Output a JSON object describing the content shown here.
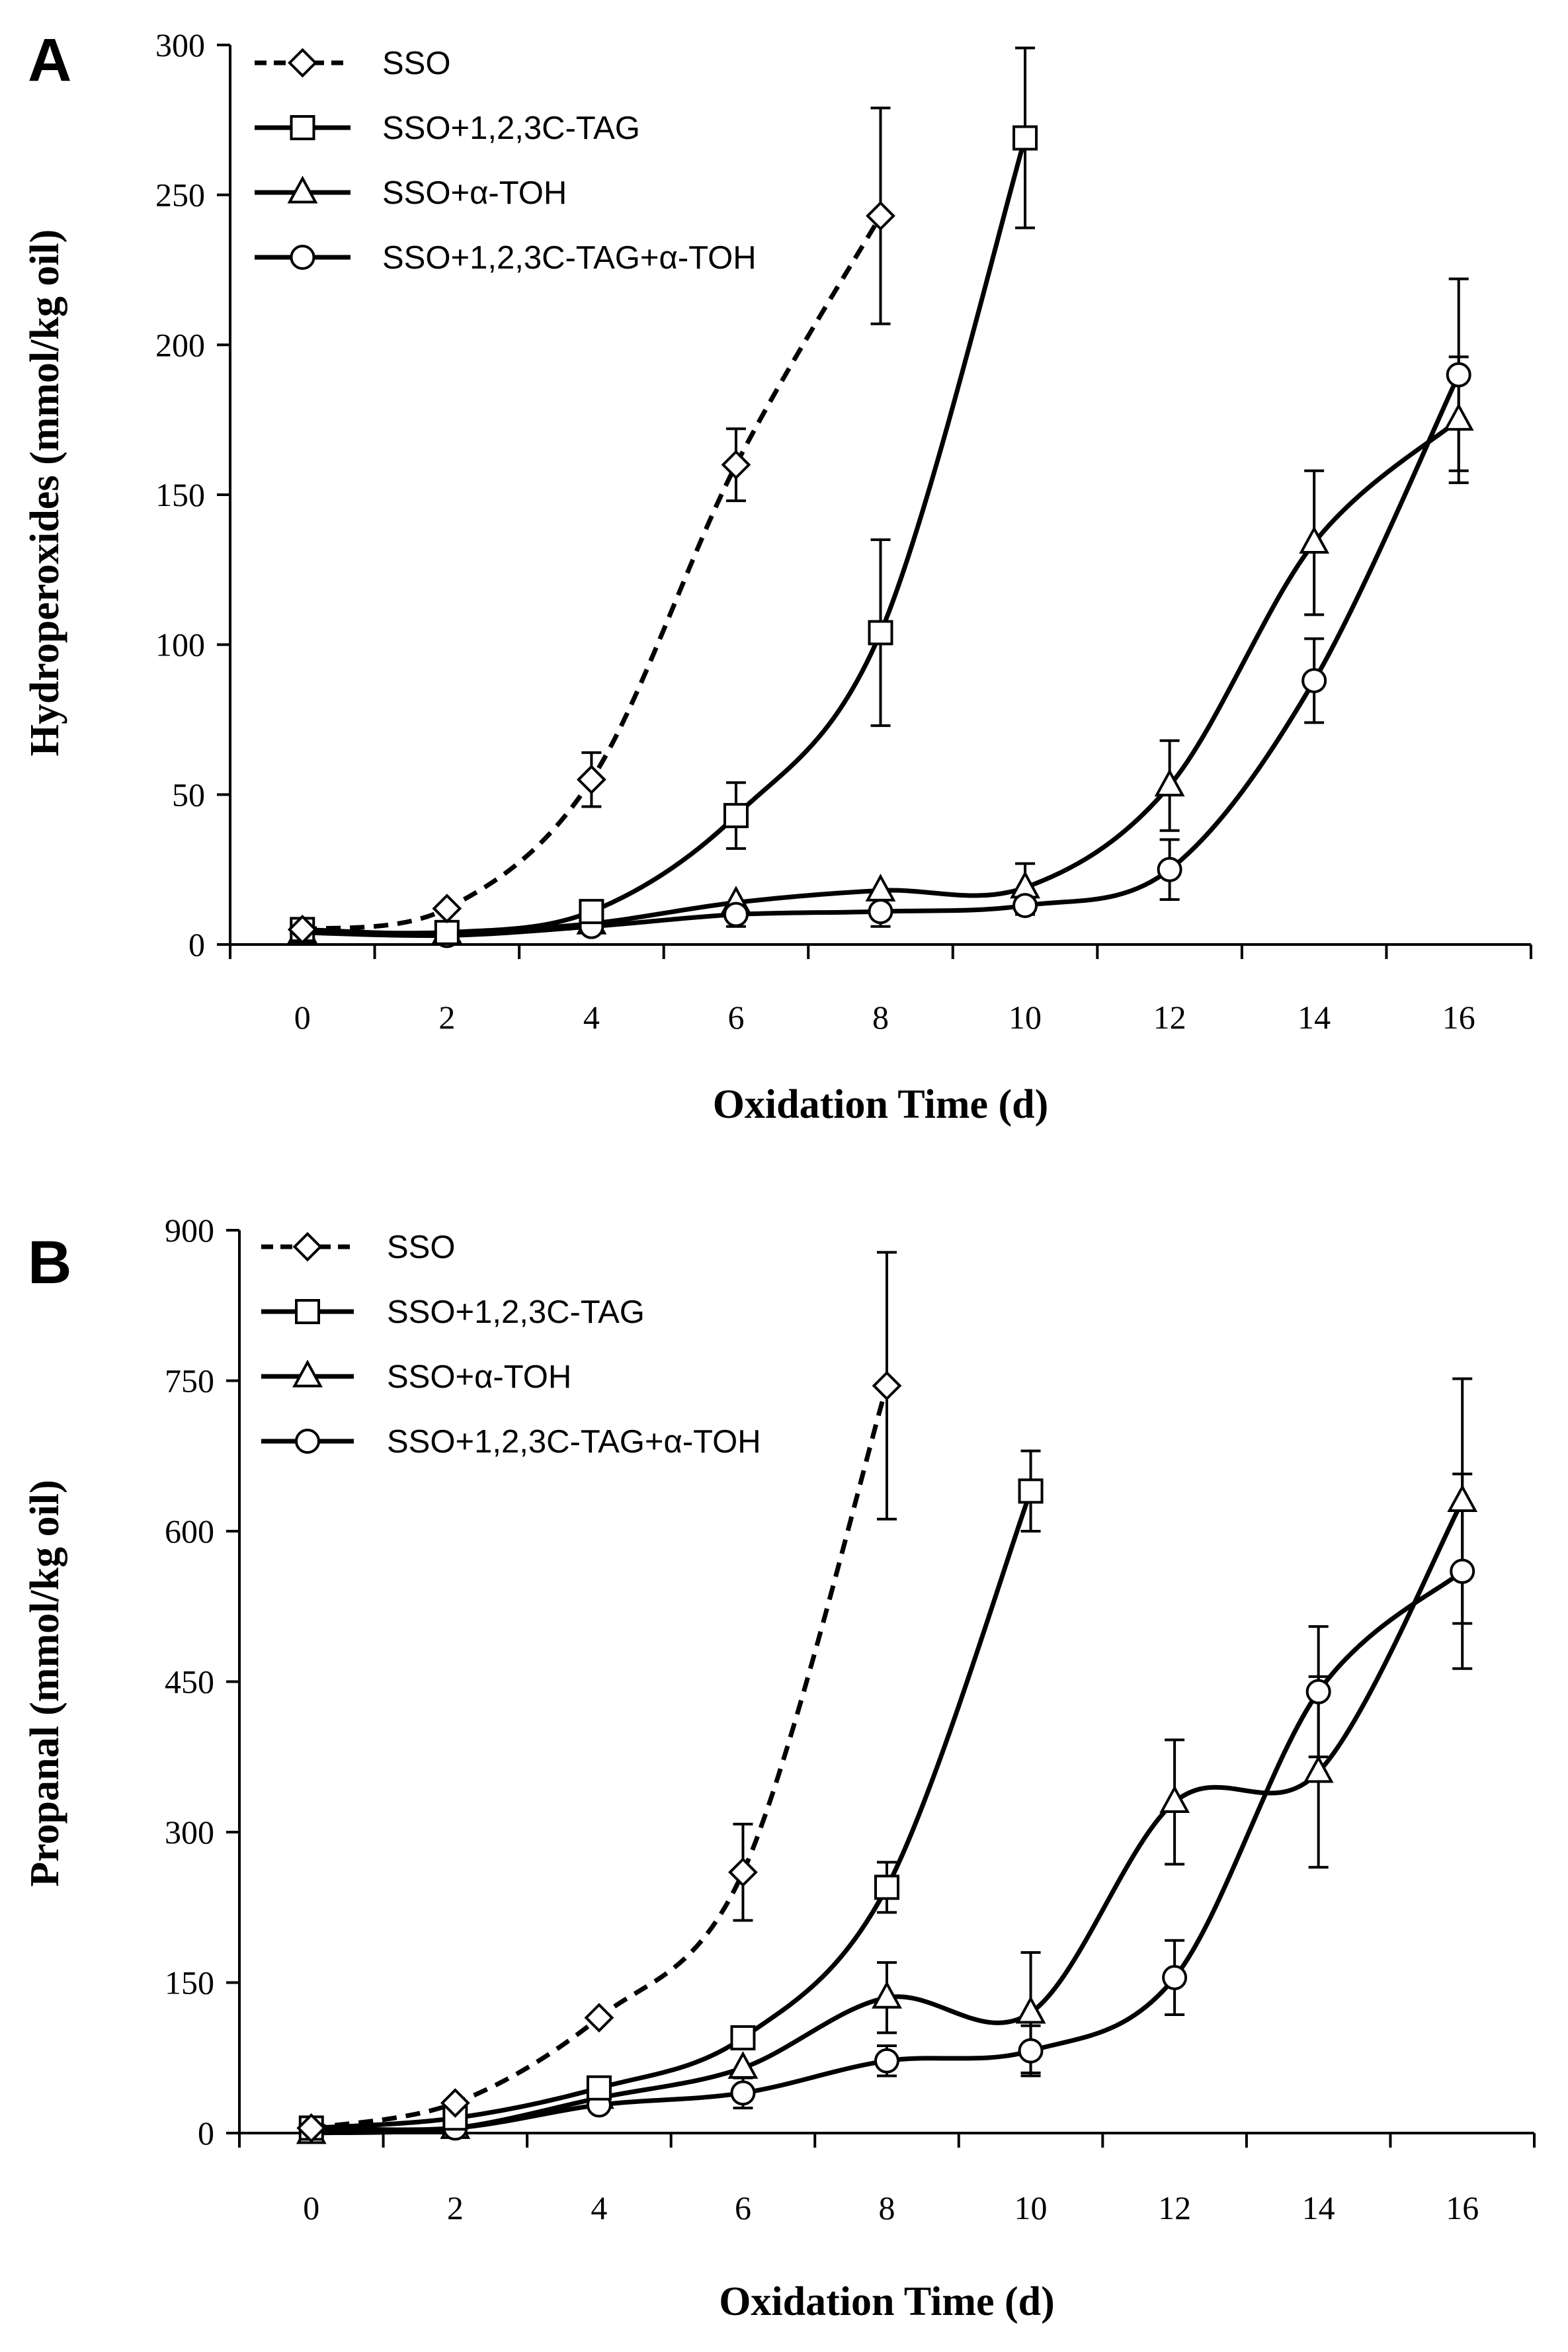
{
  "chart_data": [
    {
      "type": "line",
      "panel_label": "A",
      "title": "",
      "xlabel": "Oxidation Time (d)",
      "ylabel": "Hydroperoxides (mmol/kg oil)",
      "xlim": [
        -1,
        17
      ],
      "ylim": [
        0,
        300
      ],
      "xticks": [
        "0",
        "2",
        "4",
        "6",
        "8",
        "10",
        "12",
        "14",
        "16"
      ],
      "yticks": [
        "0",
        "50",
        "100",
        "150",
        "200",
        "250",
        "300"
      ],
      "legend_position": "top-left",
      "series": [
        {
          "name": "SSO",
          "marker": "diamond",
          "dashed": true,
          "x": [
            0,
            2,
            4,
            6,
            8
          ],
          "y": [
            5,
            12,
            55,
            160,
            243
          ],
          "err": [
            0,
            0,
            9,
            12,
            36
          ]
        },
        {
          "name": "SSO+1,2,3C-TAG",
          "marker": "square",
          "dashed": false,
          "x": [
            0,
            2,
            4,
            6,
            8,
            10
          ],
          "y": [
            5,
            4,
            11,
            43,
            104,
            269
          ],
          "err": [
            0,
            0,
            0,
            11,
            31,
            30
          ]
        },
        {
          "name": "SSO+α-TOH",
          "marker": "triangle",
          "dashed": false,
          "x": [
            0,
            2,
            4,
            6,
            8,
            10,
            12,
            14,
            16
          ],
          "y": [
            4,
            4,
            7,
            14,
            18,
            19,
            53,
            134,
            175
          ],
          "err": [
            0,
            0,
            0,
            0,
            0,
            8,
            15,
            24,
            21
          ]
        },
        {
          "name": "SSO+1,2,3C-TAG+α-TOH",
          "marker": "circle",
          "dashed": false,
          "x": [
            0,
            2,
            4,
            6,
            8,
            10,
            12,
            14,
            16
          ],
          "y": [
            4,
            3,
            6,
            10,
            11,
            13,
            25,
            88,
            190
          ],
          "err": [
            0,
            0,
            0,
            4,
            5,
            3,
            10,
            14,
            32
          ]
        }
      ]
    },
    {
      "type": "line",
      "panel_label": "B",
      "title": "",
      "xlabel": "Oxidation Time (d)",
      "ylabel": "Propanal (mmol/kg oil)",
      "xlim": [
        -1,
        17
      ],
      "ylim": [
        0,
        900
      ],
      "xticks": [
        "0",
        "2",
        "4",
        "6",
        "8",
        "10",
        "12",
        "14",
        "16"
      ],
      "yticks": [
        "0",
        "150",
        "300",
        "450",
        "600",
        "750",
        "900"
      ],
      "legend_position": "top-left",
      "series": [
        {
          "name": "SSO",
          "marker": "diamond",
          "dashed": true,
          "x": [
            0,
            2,
            4,
            6,
            8
          ],
          "y": [
            5,
            30,
            115,
            260,
            745
          ],
          "err": [
            0,
            0,
            0,
            48,
            133
          ]
        },
        {
          "name": "SSO+1,2,3C-TAG",
          "marker": "square",
          "dashed": false,
          "x": [
            0,
            2,
            4,
            6,
            8,
            10
          ],
          "y": [
            5,
            15,
            45,
            95,
            245,
            640
          ],
          "err": [
            0,
            0,
            0,
            0,
            25,
            40
          ]
        },
        {
          "name": "SSO+α-TOH",
          "marker": "triangle",
          "dashed": false,
          "x": [
            0,
            2,
            4,
            6,
            8,
            10,
            12,
            14,
            16
          ],
          "y": [
            0,
            5,
            35,
            65,
            135,
            120,
            330,
            360,
            630
          ],
          "err": [
            0,
            0,
            0,
            0,
            35,
            60,
            62,
            95,
            122
          ]
        },
        {
          "name": "SSO+1,2,3C-TAG+α-TOH",
          "marker": "circle",
          "dashed": false,
          "x": [
            0,
            2,
            4,
            6,
            8,
            10,
            12,
            14,
            16
          ],
          "y": [
            5,
            5,
            28,
            40,
            72,
            82,
            155,
            440,
            560
          ],
          "err": [
            0,
            0,
            0,
            15,
            15,
            25,
            37,
            65,
            97
          ]
        }
      ]
    }
  ]
}
